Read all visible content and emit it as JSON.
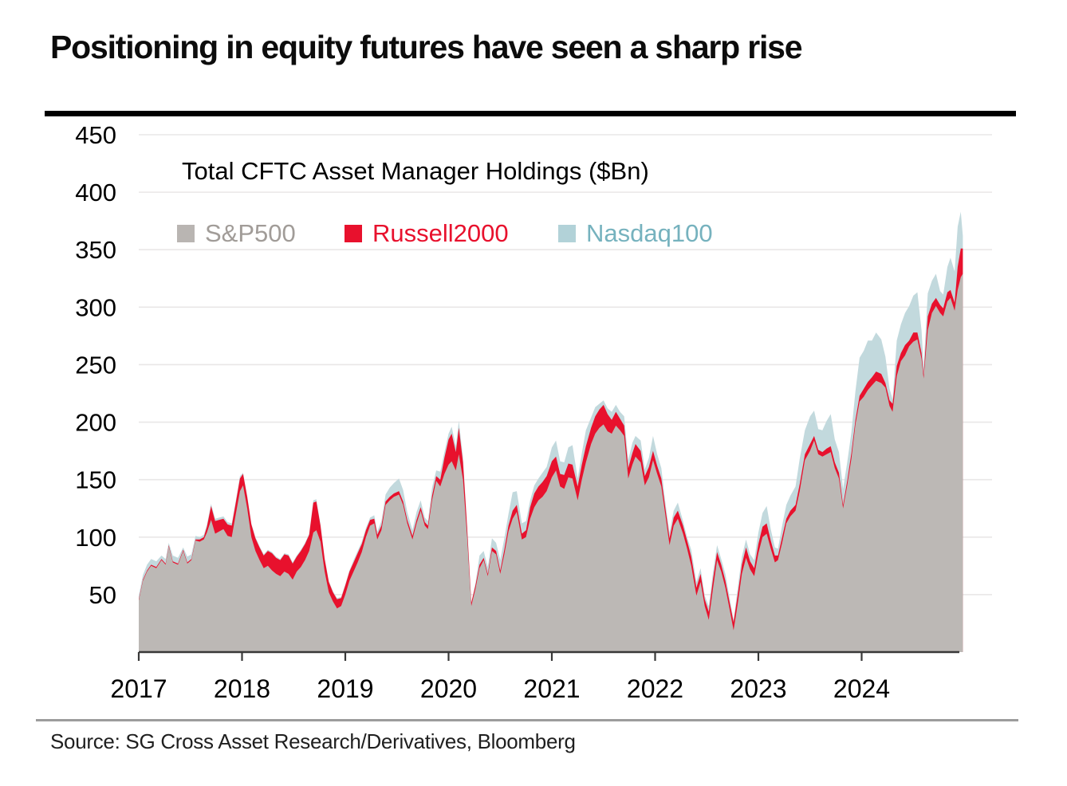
{
  "title": "Positioning in equity futures have seen a sharp rise",
  "chart": {
    "subtitle": "Total CFTC Asset Manager Holdings ($Bn)",
    "legend": {
      "items": [
        {
          "label": "S&P500",
          "text_color": "#a19c98",
          "swatch_color": "#b9b5b2"
        },
        {
          "label": "Russell2000",
          "text_color": "#e8112d",
          "swatch_color": "#e8112d"
        },
        {
          "label": "Nasdaq100",
          "text_color": "#76b2be",
          "swatch_color": "#b2d2d8"
        }
      ]
    }
  },
  "source": {
    "text": "Source: SG Cross Asset Research/Derivatives, Bloomberg"
  },
  "colors": {
    "sp500_area": "#bcb8b5",
    "russell_area": "#e8112d",
    "nasdaq_area": "#c2d9dd",
    "gridline": "#e9e7e7",
    "axis": "#383838",
    "tick_label": "#000000"
  },
  "chart_data": {
    "type": "area",
    "stacked": true,
    "title": "Total CFTC Asset Manager Holdings ($Bn)",
    "unit": "$Bn",
    "ylim": [
      0,
      450
    ],
    "y_ticks": [
      50,
      100,
      150,
      200,
      250,
      300,
      350,
      400,
      450
    ],
    "x_ticks": [
      "2017",
      "2018",
      "2019",
      "2020",
      "2021",
      "2022",
      "2023",
      "2024"
    ],
    "x_tick_years": [
      2017,
      2018,
      2019,
      2020,
      2021,
      2022,
      2023,
      2024
    ],
    "grid": "horizontal",
    "legend_position": "top-left-inside",
    "x": [
      2017.0,
      2017.04,
      2017.08,
      2017.12,
      2017.17,
      2017.22,
      2017.26,
      2017.29,
      2017.33,
      2017.38,
      2017.43,
      2017.47,
      2017.51,
      2017.55,
      2017.59,
      2017.63,
      2017.66,
      2017.7,
      2017.74,
      2017.78,
      2017.82,
      2017.86,
      2017.9,
      2017.94,
      2017.98,
      2018.01,
      2018.05,
      2018.09,
      2018.13,
      2018.17,
      2018.21,
      2018.25,
      2018.29,
      2018.33,
      2018.37,
      2018.41,
      2018.45,
      2018.49,
      2018.53,
      2018.57,
      2018.61,
      2018.65,
      2018.69,
      2018.72,
      2018.76,
      2018.8,
      2018.84,
      2018.88,
      2018.92,
      2018.96,
      2019.0,
      2019.04,
      2019.08,
      2019.12,
      2019.16,
      2019.2,
      2019.24,
      2019.28,
      2019.31,
      2019.35,
      2019.39,
      2019.43,
      2019.47,
      2019.52,
      2019.56,
      2019.6,
      2019.65,
      2019.69,
      2019.73,
      2019.77,
      2019.8,
      2019.84,
      2019.88,
      2019.92,
      2019.96,
      2020.0,
      2020.03,
      2020.07,
      2020.1,
      2020.14,
      2020.18,
      2020.22,
      2020.26,
      2020.3,
      2020.34,
      2020.38,
      2020.42,
      2020.46,
      2020.5,
      2020.54,
      2020.58,
      2020.62,
      2020.66,
      2020.71,
      2020.75,
      2020.79,
      2020.83,
      2020.87,
      2020.91,
      2020.95,
      2021.0,
      2021.04,
      2021.08,
      2021.12,
      2021.16,
      2021.2,
      2021.25,
      2021.29,
      2021.33,
      2021.38,
      2021.42,
      2021.46,
      2021.5,
      2021.54,
      2021.58,
      2021.62,
      2021.66,
      2021.7,
      2021.74,
      2021.78,
      2021.81,
      2021.86,
      2021.9,
      2021.94,
      2021.98,
      2022.02,
      2022.06,
      2022.1,
      2022.14,
      2022.18,
      2022.22,
      2022.27,
      2022.31,
      2022.35,
      2022.4,
      2022.44,
      2022.48,
      2022.52,
      2022.56,
      2022.6,
      2022.64,
      2022.68,
      2022.72,
      2022.76,
      2022.8,
      2022.84,
      2022.88,
      2022.92,
      2022.96,
      2023.0,
      2023.04,
      2023.08,
      2023.12,
      2023.16,
      2023.19,
      2023.23,
      2023.27,
      2023.31,
      2023.36,
      2023.4,
      2023.45,
      2023.5,
      2023.54,
      2023.58,
      2023.62,
      2023.66,
      2023.7,
      2023.74,
      2023.78,
      2023.82,
      2023.86,
      2023.9,
      2023.94,
      2023.98,
      2024.02,
      2024.06,
      2024.1,
      2024.14,
      2024.19,
      2024.23,
      2024.27,
      2024.3,
      2024.34,
      2024.38,
      2024.42,
      2024.46,
      2024.5,
      2024.54,
      2024.58,
      2024.6,
      2024.64,
      2024.68,
      2024.72,
      2024.76,
      2024.79,
      2024.83,
      2024.86,
      2024.9,
      2024.93,
      2024.96,
      2024.98
    ],
    "series": [
      {
        "name": "S&P500",
        "color": "#bcb8b5",
        "values": [
          45,
          62,
          70,
          75,
          73,
          80,
          76,
          92,
          78,
          76,
          88,
          77,
          80,
          97,
          96,
          98,
          104,
          115,
          103,
          105,
          107,
          101,
          100,
          120,
          140,
          145,
          125,
          100,
          88,
          80,
          73,
          75,
          71,
          68,
          66,
          70,
          68,
          63,
          70,
          74,
          80,
          88,
          104,
          106,
          96,
          70,
          52,
          44,
          38,
          40,
          50,
          62,
          70,
          78,
          87,
          100,
          110,
          112,
          98,
          106,
          128,
          132,
          135,
          137,
          128,
          112,
          98,
          112,
          123,
          110,
          107,
          132,
          149,
          144,
          155,
          163,
          166,
          158,
          172,
          150,
          100,
          40,
          55,
          73,
          80,
          66,
          88,
          85,
          68,
          85,
          105,
          116,
          122,
          98,
          100,
          116,
          126,
          132,
          135,
          140,
          152,
          158,
          144,
          142,
          152,
          151,
          132,
          150,
          165,
          181,
          190,
          195,
          198,
          192,
          190,
          197,
          193,
          188,
          151,
          163,
          170,
          165,
          145,
          152,
          167,
          155,
          144,
          119,
          93,
          110,
          116,
          103,
          90,
          75,
          49,
          61,
          40,
          28,
          55,
          80,
          70,
          56,
          38,
          19,
          42,
          68,
          82,
          72,
          66,
          86,
          100,
          103,
          90,
          78,
          80,
          95,
          112,
          118,
          123,
          140,
          167,
          175,
          184,
          172,
          170,
          172,
          174,
          160,
          151,
          125,
          145,
          168,
          198,
          218,
          222,
          228,
          232,
          236,
          234,
          230,
          214,
          209,
          240,
          253,
          258,
          266,
          270,
          272,
          255,
          238,
          280,
          295,
          301,
          295,
          292,
          305,
          308,
          297,
          315,
          326,
          329
        ]
      },
      {
        "name": "Russell2000",
        "color": "#e8112d",
        "values": [
          1,
          1,
          1,
          1,
          1,
          1,
          1,
          1,
          1,
          1,
          1,
          1,
          1,
          1,
          2,
          2,
          5,
          12,
          11,
          10,
          9,
          10,
          10,
          10,
          11,
          10,
          10,
          11,
          11,
          11,
          11,
          13,
          15,
          14,
          14,
          15,
          16,
          14,
          13,
          14,
          14,
          14,
          26,
          25,
          14,
          11,
          9,
          8,
          8,
          7,
          8,
          8,
          8,
          8,
          7,
          6,
          5,
          4,
          4,
          4,
          3,
          3,
          3,
          3,
          3,
          3,
          3,
          3,
          3,
          3,
          3,
          4,
          4,
          6,
          14,
          22,
          24,
          16,
          23,
          15,
          8,
          3,
          3,
          3,
          2,
          2,
          3,
          3,
          3,
          4,
          5,
          7,
          6,
          5,
          6,
          10,
          12,
          12,
          13,
          13,
          14,
          12,
          11,
          12,
          12,
          12,
          12,
          13,
          14,
          14,
          15,
          16,
          17,
          15,
          12,
          12,
          10,
          9,
          9,
          10,
          11,
          10,
          8,
          9,
          8,
          7,
          7,
          6,
          6,
          7,
          7,
          7,
          7,
          8,
          7,
          7,
          6,
          7,
          8,
          7,
          6,
          6,
          6,
          7,
          8,
          8,
          9,
          7,
          7,
          8,
          9,
          9,
          7,
          6,
          4,
          5,
          4,
          5,
          5,
          6,
          5,
          6,
          4,
          4,
          4,
          5,
          5,
          5,
          5,
          3,
          4,
          5,
          4,
          5,
          7,
          7,
          7,
          8,
          8,
          4,
          5,
          7,
          9,
          7,
          9,
          5,
          8,
          6,
          5,
          3,
          12,
          8,
          7,
          7,
          7,
          8,
          7,
          7,
          20,
          25,
          22
        ]
      },
      {
        "name": "Nasdaq100",
        "color": "#c2d9dd",
        "values": [
          3,
          4,
          5,
          5,
          5,
          3,
          4,
          2,
          5,
          5,
          2,
          5,
          4,
          3,
          2,
          2,
          2,
          2,
          2,
          2,
          2,
          2,
          2,
          2,
          2,
          1,
          1,
          1,
          1,
          1,
          1,
          1,
          1,
          1,
          1,
          1,
          1,
          1,
          1,
          1,
          1,
          1,
          2,
          2,
          1,
          1,
          1,
          1,
          1,
          1,
          1,
          1,
          2,
          2,
          2,
          2,
          2,
          3,
          3,
          4,
          6,
          8,
          9,
          11,
          10,
          7,
          5,
          7,
          6,
          4,
          4,
          7,
          5,
          7,
          5,
          5,
          6,
          5,
          6,
          4,
          2,
          0,
          2,
          8,
          6,
          6,
          8,
          7,
          9,
          10,
          10,
          16,
          12,
          9,
          8,
          6,
          7,
          7,
          8,
          8,
          12,
          14,
          11,
          11,
          14,
          17,
          7,
          10,
          14,
          9,
          8,
          5,
          4,
          5,
          7,
          6,
          6,
          8,
          7,
          9,
          7,
          9,
          6,
          8,
          13,
          10,
          9,
          5,
          5,
          6,
          7,
          4,
          3,
          6,
          5,
          5,
          3,
          5,
          6,
          6,
          5,
          6,
          4,
          2,
          6,
          7,
          7,
          6,
          7,
          10,
          12,
          15,
          10,
          7,
          6,
          10,
          12,
          13,
          16,
          22,
          21,
          24,
          22,
          18,
          19,
          24,
          28,
          20,
          18,
          14,
          16,
          18,
          25,
          33,
          33,
          36,
          32,
          34,
          30,
          23,
          10,
          4,
          22,
          25,
          28,
          30,
          32,
          35,
          20,
          7,
          20,
          20,
          21,
          12,
          12,
          22,
          28,
          27,
          35,
          32,
          11
        ]
      }
    ]
  }
}
